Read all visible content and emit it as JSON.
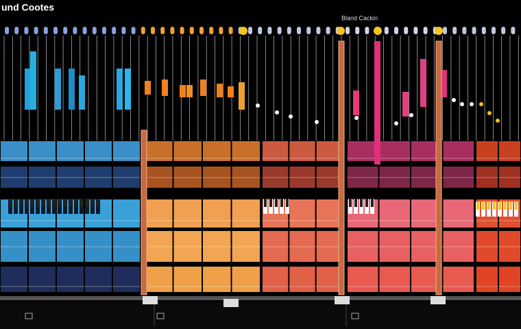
{
  "header": {
    "title": "und Cootes",
    "label": "Bland Cackin"
  }
}
